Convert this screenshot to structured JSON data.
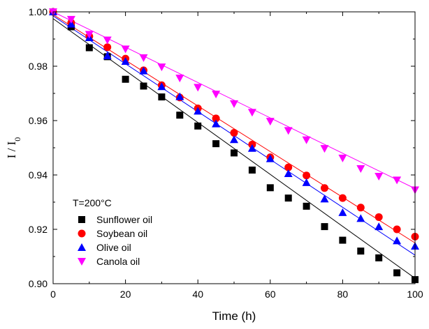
{
  "chart_data": {
    "type": "scatter",
    "title": "",
    "xlabel": "Time (h)",
    "ylabel": "I / I0",
    "xlim": [
      0,
      100
    ],
    "ylim": [
      0.9,
      1.0
    ],
    "x_ticks": [
      0,
      20,
      40,
      60,
      80,
      100
    ],
    "y_ticks": [
      0.9,
      0.92,
      0.94,
      0.96,
      0.98,
      1.0
    ],
    "y_tick_labels": [
      "0.90",
      "0.92",
      "0.94",
      "0.96",
      "0.98",
      "1.00"
    ],
    "legend_title": "T=200°C",
    "legend_position": "bottom-left",
    "grid": false,
    "x": [
      0,
      5,
      10,
      15,
      20,
      25,
      30,
      35,
      40,
      45,
      50,
      55,
      60,
      65,
      70,
      75,
      80,
      85,
      90,
      95,
      100
    ],
    "series": [
      {
        "name": "Sunflower oil",
        "marker": "square",
        "color": "#000000",
        "values": [
          1.0,
          0.9945,
          0.9868,
          0.9835,
          0.9752,
          0.9727,
          0.9687,
          0.962,
          0.958,
          0.9515,
          0.9481,
          0.9418,
          0.9353,
          0.9315,
          0.9285,
          0.921,
          0.916,
          0.912,
          0.9095,
          0.904,
          0.9015
        ],
        "fit": {
          "start": 0.9975,
          "end": 0.902
        }
      },
      {
        "name": "Soybean oil",
        "marker": "circle",
        "color": "#ff0000",
        "values": [
          1.0,
          0.996,
          0.991,
          0.987,
          0.9828,
          0.9785,
          0.973,
          0.9685,
          0.9645,
          0.9608,
          0.9555,
          0.9512,
          0.9465,
          0.9428,
          0.9398,
          0.9352,
          0.9315,
          0.928,
          0.9245,
          0.92,
          0.9173
        ],
        "fit": {
          "start": 0.999,
          "end": 0.915
        }
      },
      {
        "name": "Olive oil",
        "marker": "triangle-up",
        "color": "#0000ff",
        "values": [
          1.0,
          0.9955,
          0.9905,
          0.9838,
          0.9818,
          0.9783,
          0.9725,
          0.9688,
          0.9635,
          0.9588,
          0.953,
          0.9498,
          0.946,
          0.9405,
          0.9372,
          0.9312,
          0.9262,
          0.924,
          0.921,
          0.9158,
          0.9138
        ],
        "fit": {
          "start": 0.9985,
          "end": 0.9105
        }
      },
      {
        "name": "Canola oil",
        "marker": "triangle-down",
        "color": "#ff00ff",
        "values": [
          1.0,
          0.9972,
          0.9917,
          0.9896,
          0.9863,
          0.9831,
          0.9797,
          0.9756,
          0.9722,
          0.9697,
          0.9662,
          0.963,
          0.9597,
          0.9563,
          0.9529,
          0.9497,
          0.9462,
          0.9423,
          0.9395,
          0.9381,
          0.9345
        ],
        "fit": {
          "start": 1.0,
          "end": 0.935
        }
      }
    ]
  }
}
